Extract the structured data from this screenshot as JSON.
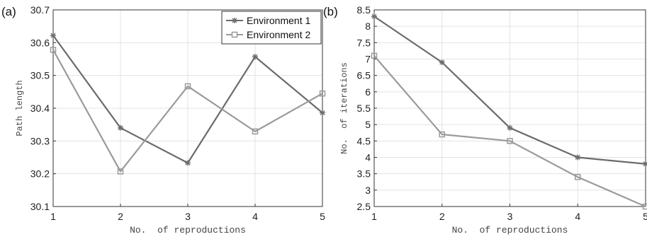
{
  "chart_data": [
    {
      "type": "line",
      "panel_label": "(a)",
      "xlabel": "No.  of reproductions",
      "ylabel": "Path length",
      "x": [
        1,
        2,
        3,
        4,
        5
      ],
      "xlim": [
        1,
        5
      ],
      "ylim": [
        30.1,
        30.7
      ],
      "xticks": [
        "1",
        "2",
        "3",
        "4",
        "5"
      ],
      "yticks": [
        "30.1",
        "30.2",
        "30.3",
        "30.4",
        "30.5",
        "30.6",
        "30.7"
      ],
      "grid": true,
      "legend_position": "top-right",
      "series": [
        {
          "name": "Environment 1",
          "marker": "asterisk",
          "color": "#6b6b6b",
          "values": [
            30.622,
            30.34,
            30.233,
            30.557,
            30.386
          ]
        },
        {
          "name": "Environment 2",
          "marker": "square",
          "color": "#9a9a9a",
          "values": [
            30.578,
            30.207,
            30.467,
            30.329,
            30.445
          ]
        }
      ]
    },
    {
      "type": "line",
      "panel_label": "(b)",
      "xlabel": "No.  of reproductions",
      "ylabel": "No.  of iterations",
      "x": [
        1,
        2,
        3,
        4,
        5
      ],
      "xlim": [
        1,
        5
      ],
      "ylim": [
        2.5,
        8.5
      ],
      "xticks": [
        "1",
        "2",
        "3",
        "4",
        "5"
      ],
      "yticks": [
        "2.5",
        "3",
        "3.5",
        "4",
        "4.5",
        "5",
        "5.5",
        "6",
        "6.5",
        "7",
        "7.5",
        "8",
        "8.5"
      ],
      "grid": true,
      "series": [
        {
          "name": "Environment 1",
          "marker": "asterisk",
          "color": "#6b6b6b",
          "values": [
            8.3,
            6.9,
            4.9,
            4.0,
            3.8
          ]
        },
        {
          "name": "Environment 2",
          "marker": "square",
          "color": "#9a9a9a",
          "values": [
            7.1,
            4.7,
            4.5,
            3.4,
            2.5
          ]
        }
      ]
    }
  ]
}
